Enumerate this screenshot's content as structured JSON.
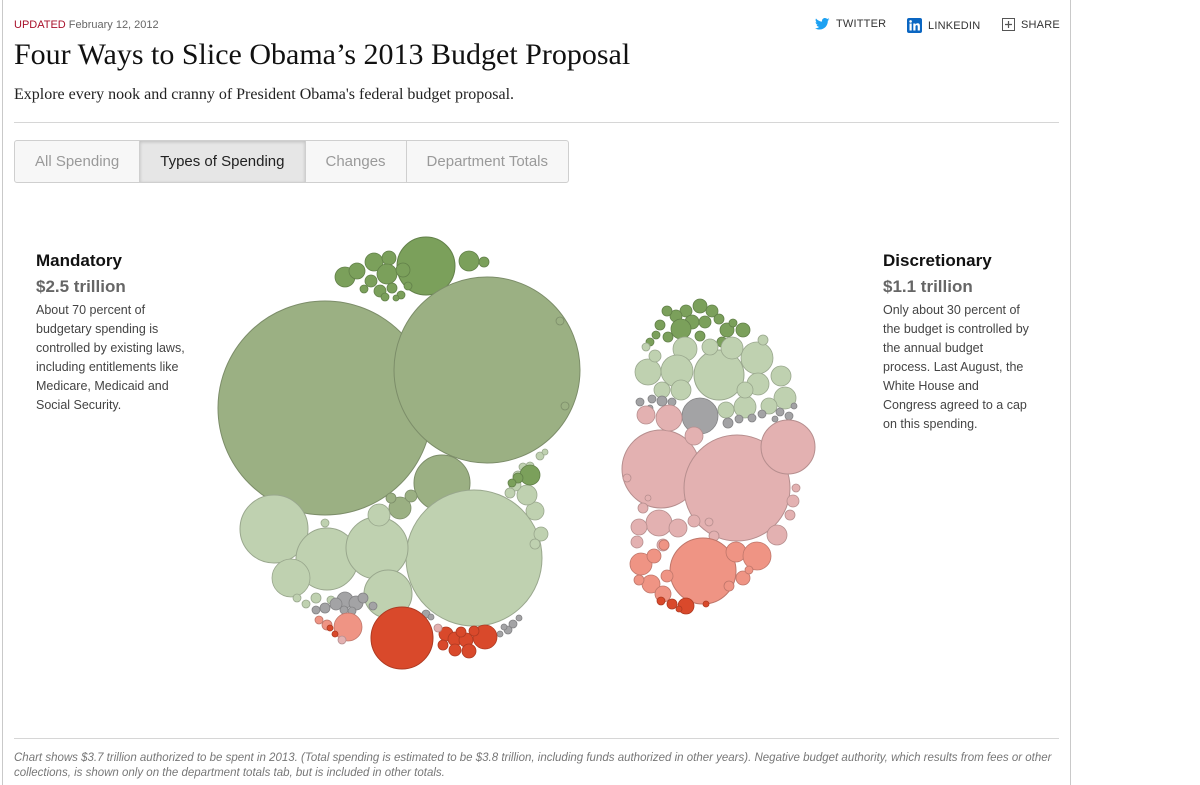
{
  "dateline": {
    "updated_label": "UPDATED",
    "date": "February 12, 2012"
  },
  "social": {
    "twitter": "TWITTER",
    "linkedin": "LINKEDIN",
    "share": "SHARE"
  },
  "headline": "Four Ways to Slice Obama’s 2013 Budget Proposal",
  "subhead": "Explore every nook and cranny of President Obama's federal budget proposal.",
  "tabs": [
    {
      "label": "All Spending",
      "active": false
    },
    {
      "label": "Types of Spending",
      "active": true
    },
    {
      "label": "Changes",
      "active": false
    },
    {
      "label": "Department Totals",
      "active": false
    }
  ],
  "mandatory": {
    "title": "Mandatory",
    "amount": "$2.5 trillion",
    "description": "About 70 percent of budgetary spending is controlled by existing laws, including entitlements like Medicare, Medicaid and Social Security."
  },
  "discretionary": {
    "title": "Discretionary",
    "amount": "$1.1 trillion",
    "description": "Only about 30 percent of the budget is controlled by the annual budget process. Last August, the White House and Congress agreed to a cap on this spending."
  },
  "colors": {
    "dark_green": "#7ba05b",
    "mid_green": "#9bb083",
    "light_green": "#bfd1b0",
    "gray": "#a3a3a5",
    "light_red": "#e3b1b1",
    "mid_red": "#ef9484",
    "dark_red": "#d9492b"
  },
  "chart_data": {
    "type": "bubble",
    "groups": [
      {
        "title": "Mandatory",
        "total": "$2.5 trillion"
      },
      {
        "title": "Discretionary",
        "total": "$1.1 trillion"
      }
    ]
  },
  "footnote": "Chart shows $3.7 trillion authorized to be spent in 2013. (Total spending is estimated to be $3.8 trillion, including funds authorized in other years). Negative budget authority, which results from fees or other collections, is shown only on the department totals tab, but is included in other totals."
}
